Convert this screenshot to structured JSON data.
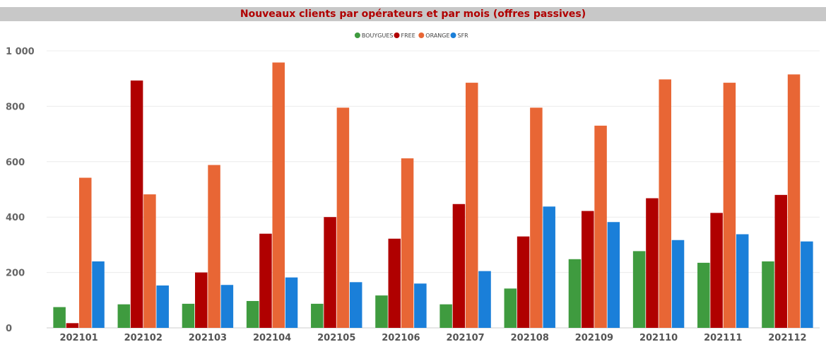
{
  "chart_data": {
    "type": "bar",
    "title": "Nouveaux clients par opérateurs et par mois (offres passives)",
    "categories": [
      "202101",
      "202102",
      "202103",
      "202104",
      "202105",
      "202106",
      "202107",
      "202108",
      "202109",
      "202110",
      "202111",
      "202112"
    ],
    "series": [
      {
        "name": "BOUYGUES",
        "color": "#3f9b3f",
        "values": [
          75,
          85,
          87,
          97,
          87,
          117,
          85,
          142,
          248,
          277,
          235,
          240
        ]
      },
      {
        "name": "FREE",
        "color": "#b00000",
        "values": [
          17,
          893,
          200,
          340,
          400,
          322,
          447,
          330,
          422,
          468,
          415,
          480
        ]
      },
      {
        "name": "ORANGE",
        "color": "#e86635",
        "values": [
          542,
          482,
          588,
          958,
          795,
          612,
          885,
          795,
          730,
          897,
          885,
          915
        ]
      },
      {
        "name": "SFR",
        "color": "#1a7fd9",
        "values": [
          240,
          153,
          155,
          182,
          165,
          160,
          205,
          438,
          382,
          317,
          338,
          312
        ]
      }
    ],
    "ylim": [
      0,
      1000
    ],
    "yticks": [
      0,
      200,
      400,
      600,
      800,
      1000
    ],
    "ytick_labels": [
      "0",
      "200",
      "400",
      "600",
      "800",
      "1 000"
    ],
    "grid": true,
    "legend_position": "top-center",
    "xlabel": "",
    "ylabel": ""
  }
}
